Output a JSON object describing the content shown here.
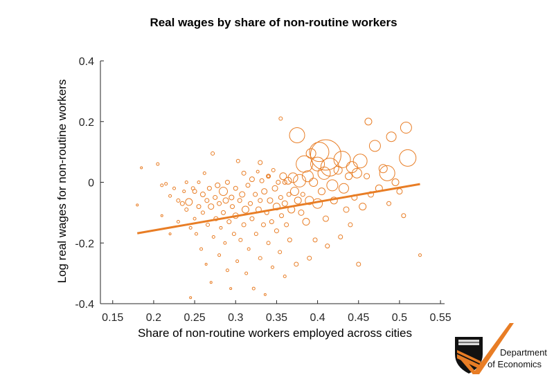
{
  "chart_data": {
    "type": "scatter",
    "title": "Real wages by share of non-routine workers",
    "xlabel": "Share of non-routine workers employed across cities",
    "ylabel": "Log real wages for non-routine workers",
    "xlim": [
      0.135,
      0.555
    ],
    "ylim": [
      -0.4,
      0.4
    ],
    "xticks": [
      "0.15",
      "0.2",
      "0.25",
      "0.3",
      "0.35",
      "0.4",
      "0.45",
      "0.5",
      "0.55"
    ],
    "yticks": [
      "0.4",
      "0.2",
      "0",
      "-0.2",
      "-0.4"
    ],
    "grid": false,
    "marker": "hollow circle, size proportional to city employment",
    "color": "#e87d25",
    "fit_line": {
      "x": [
        0.18,
        0.525
      ],
      "y": [
        -0.168,
        -0.006
      ]
    },
    "points": [
      [
        0.18,
        -0.075,
        1.5
      ],
      [
        0.185,
        0.048,
        1.5
      ],
      [
        0.205,
        0.06,
        2
      ],
      [
        0.21,
        -0.01,
        2
      ],
      [
        0.21,
        -0.11,
        1.5
      ],
      [
        0.215,
        -0.005,
        2
      ],
      [
        0.22,
        -0.045,
        2
      ],
      [
        0.22,
        -0.17,
        1.5
      ],
      [
        0.225,
        -0.02,
        2
      ],
      [
        0.23,
        -0.06,
        2.5
      ],
      [
        0.23,
        -0.13,
        2
      ],
      [
        0.235,
        -0.07,
        3
      ],
      [
        0.237,
        -0.03,
        2
      ],
      [
        0.24,
        0.0,
        2
      ],
      [
        0.24,
        -0.09,
        2.5
      ],
      [
        0.243,
        -0.065,
        5
      ],
      [
        0.245,
        -0.38,
        1.5
      ],
      [
        0.245,
        -0.15,
        2
      ],
      [
        0.248,
        -0.02,
        2.5
      ],
      [
        0.25,
        -0.03,
        3
      ],
      [
        0.25,
        -0.12,
        2
      ],
      [
        0.252,
        -0.17,
        2
      ],
      [
        0.255,
        -0.08,
        3
      ],
      [
        0.255,
        0.0,
        2
      ],
      [
        0.258,
        -0.22,
        2
      ],
      [
        0.26,
        -0.04,
        3.5
      ],
      [
        0.26,
        -0.1,
        2.5
      ],
      [
        0.262,
        0.03,
        2
      ],
      [
        0.264,
        -0.27,
        1.5
      ],
      [
        0.265,
        -0.06,
        3
      ],
      [
        0.266,
        -0.14,
        2.5
      ],
      [
        0.268,
        -0.02,
        3
      ],
      [
        0.27,
        -0.33,
        1.5
      ],
      [
        0.27,
        -0.08,
        4
      ],
      [
        0.272,
        0.095,
        2.5
      ],
      [
        0.273,
        -0.18,
        2
      ],
      [
        0.275,
        -0.05,
        3
      ],
      [
        0.276,
        -0.12,
        3
      ],
      [
        0.278,
        -0.01,
        3.5
      ],
      [
        0.28,
        -0.24,
        2
      ],
      [
        0.28,
        -0.07,
        3
      ],
      [
        0.282,
        -0.15,
        2
      ],
      [
        0.285,
        -0.03,
        6
      ],
      [
        0.285,
        -0.1,
        3
      ],
      [
        0.287,
        -0.2,
        2
      ],
      [
        0.288,
        -0.06,
        4
      ],
      [
        0.29,
        -0.29,
        2
      ],
      [
        0.29,
        0.0,
        3
      ],
      [
        0.292,
        -0.13,
        3
      ],
      [
        0.294,
        -0.35,
        1.5
      ],
      [
        0.295,
        -0.05,
        3.5
      ],
      [
        0.296,
        -0.08,
        3
      ],
      [
        0.298,
        -0.17,
        2.5
      ],
      [
        0.3,
        -0.02,
        3
      ],
      [
        0.3,
        -0.11,
        4
      ],
      [
        0.302,
        -0.26,
        2
      ],
      [
        0.303,
        0.07,
        2.5
      ],
      [
        0.305,
        -0.06,
        3
      ],
      [
        0.306,
        -0.19,
        2.5
      ],
      [
        0.308,
        -0.04,
        4
      ],
      [
        0.31,
        -0.14,
        3
      ],
      [
        0.31,
        0.03,
        3
      ],
      [
        0.312,
        -0.09,
        5
      ],
      [
        0.313,
        -0.3,
        2
      ],
      [
        0.315,
        -0.01,
        3
      ],
      [
        0.316,
        -0.22,
        2
      ],
      [
        0.318,
        -0.07,
        3
      ],
      [
        0.32,
        0.01,
        3.5
      ],
      [
        0.32,
        -0.12,
        3
      ],
      [
        0.322,
        -0.35,
        2
      ],
      [
        0.324,
        -0.04,
        3
      ],
      [
        0.325,
        -0.17,
        2.5
      ],
      [
        0.327,
        0.035,
        2
      ],
      [
        0.328,
        -0.09,
        4
      ],
      [
        0.33,
        -0.25,
        2.5
      ],
      [
        0.33,
        -0.06,
        3
      ],
      [
        0.332,
        0.005,
        3
      ],
      [
        0.334,
        -0.14,
        3
      ],
      [
        0.335,
        -0.03,
        4
      ],
      [
        0.336,
        -0.37,
        1.5
      ],
      [
        0.338,
        -0.1,
        3
      ],
      [
        0.34,
        -0.2,
        2.5
      ],
      [
        0.34,
        0.02,
        3
      ],
      [
        0.342,
        -0.06,
        4
      ],
      [
        0.344,
        -0.13,
        3
      ],
      [
        0.345,
        -0.28,
        2
      ],
      [
        0.346,
        0.04,
        2.5
      ],
      [
        0.348,
        -0.02,
        4
      ],
      [
        0.35,
        -0.08,
        5
      ],
      [
        0.35,
        -0.16,
        3
      ],
      [
        0.352,
        0.0,
        3
      ],
      [
        0.354,
        -0.23,
        2.5
      ],
      [
        0.355,
        -0.05,
        3
      ],
      [
        0.356,
        -0.11,
        3
      ],
      [
        0.358,
        0.02,
        5
      ],
      [
        0.36,
        -0.31,
        2
      ],
      [
        0.36,
        -0.07,
        4
      ],
      [
        0.362,
        -0.14,
        3
      ],
      [
        0.364,
        0.005,
        5
      ],
      [
        0.365,
        -0.04,
        3
      ],
      [
        0.366,
        -0.19,
        3
      ],
      [
        0.368,
        -0.09,
        5
      ],
      [
        0.37,
        0.015,
        7
      ],
      [
        0.372,
        -0.03,
        6
      ],
      [
        0.374,
        -0.27,
        3
      ],
      [
        0.375,
        0.155,
        11
      ],
      [
        0.376,
        -0.06,
        5
      ],
      [
        0.378,
        0.005,
        9
      ],
      [
        0.38,
        -0.1,
        4
      ],
      [
        0.382,
        -0.04,
        3
      ],
      [
        0.384,
        0.06,
        12
      ],
      [
        0.386,
        -0.13,
        5
      ],
      [
        0.388,
        0.02,
        8
      ],
      [
        0.39,
        -0.25,
        3
      ],
      [
        0.39,
        -0.06,
        6
      ],
      [
        0.392,
        0.095,
        7
      ],
      [
        0.395,
        0.0,
        6
      ],
      [
        0.397,
        -0.19,
        3
      ],
      [
        0.4,
        0.06,
        10
      ],
      [
        0.4,
        -0.07,
        7
      ],
      [
        0.402,
        0.1,
        14
      ],
      [
        0.405,
        -0.03,
        5
      ],
      [
        0.408,
        0.03,
        9
      ],
      [
        0.41,
        0.09,
        22
      ],
      [
        0.41,
        -0.12,
        4
      ],
      [
        0.412,
        -0.21,
        3
      ],
      [
        0.415,
        0.05,
        13
      ],
      [
        0.418,
        -0.01,
        8
      ],
      [
        0.42,
        -0.06,
        5
      ],
      [
        0.425,
        0.04,
        6
      ],
      [
        0.428,
        -0.18,
        3
      ],
      [
        0.43,
        0.075,
        12
      ],
      [
        0.432,
        -0.02,
        7
      ],
      [
        0.435,
        -0.09,
        4
      ],
      [
        0.438,
        0.02,
        5
      ],
      [
        0.44,
        -0.14,
        3
      ],
      [
        0.442,
        0.05,
        8
      ],
      [
        0.445,
        -0.05,
        4
      ],
      [
        0.448,
        0.03,
        7
      ],
      [
        0.45,
        -0.27,
        3
      ],
      [
        0.452,
        0.07,
        10
      ],
      [
        0.455,
        -0.08,
        5
      ],
      [
        0.46,
        0.02,
        4
      ],
      [
        0.462,
        0.2,
        5
      ],
      [
        0.465,
        -0.04,
        4
      ],
      [
        0.47,
        0.12,
        8
      ],
      [
        0.475,
        -0.02,
        5
      ],
      [
        0.48,
        0.045,
        6
      ],
      [
        0.485,
        0.03,
        11
      ],
      [
        0.487,
        -0.07,
        3
      ],
      [
        0.49,
        0.15,
        7
      ],
      [
        0.495,
        0.0,
        5
      ],
      [
        0.5,
        -0.03,
        4
      ],
      [
        0.505,
        -0.11,
        3
      ],
      [
        0.508,
        0.18,
        8
      ],
      [
        0.51,
        0.08,
        12
      ],
      [
        0.525,
        -0.24,
        2
      ],
      [
        0.355,
        0.21,
        2.5
      ],
      [
        0.33,
        0.065,
        3
      ],
      [
        0.34,
        0.02,
        2
      ],
      [
        0.36,
        0.0,
        3
      ]
    ]
  },
  "logo": {
    "line1": "Department",
    "line2": "of Economics"
  }
}
